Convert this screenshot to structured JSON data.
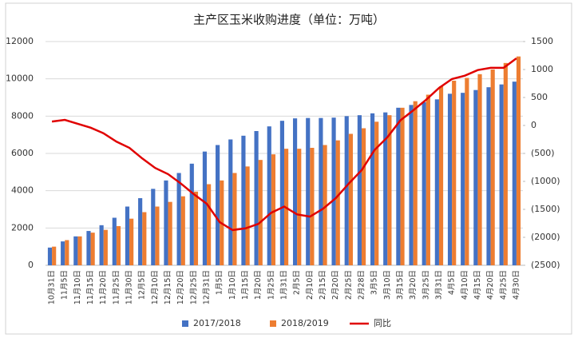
{
  "chart_data": {
    "type": "bar-line",
    "title": "主产区玉米收购进度（单位：万吨）",
    "categories": [
      "10月31日",
      "11月5日",
      "11月10日",
      "11月15日",
      "11月20日",
      "11月25日",
      "11月30日",
      "12月5日",
      "12月10日",
      "12月15日",
      "12月20日",
      "12月25日",
      "12月31日",
      "1月5日",
      "1月10日",
      "1月15日",
      "1月20日",
      "1月25日",
      "1月31日",
      "2月5日",
      "2月10日",
      "2月15日",
      "2月20日",
      "2月25日",
      "2月28日",
      "3月5日",
      "3月10日",
      "3月15日",
      "3月20日",
      "3月25日",
      "3月31日",
      "4月5日",
      "4月10日",
      "4月15日",
      "4月20日",
      "4月25日",
      "4月30日"
    ],
    "series": [
      {
        "name": "2017/2018",
        "type": "bar",
        "color": "#4472c4",
        "values": [
          950,
          1280,
          1550,
          1840,
          2150,
          2550,
          3150,
          3600,
          4100,
          4550,
          4950,
          5450,
          6100,
          6450,
          6750,
          6950,
          7200,
          7450,
          7750,
          7880,
          7900,
          7900,
          7920,
          8000,
          8050,
          8150,
          8200,
          8450,
          8600,
          8750,
          8900,
          9200,
          9250,
          9400,
          9550,
          9700,
          9850
        ]
      },
      {
        "name": "2018/2019",
        "type": "bar",
        "color": "#ed7d31",
        "values": [
          1000,
          1350,
          1550,
          1750,
          1900,
          2100,
          2500,
          2850,
          3150,
          3400,
          3700,
          3950,
          4350,
          4550,
          4950,
          5300,
          5650,
          5950,
          6250,
          6250,
          6300,
          6450,
          6700,
          7050,
          7350,
          7700,
          8050,
          8450,
          8800,
          9150,
          9600,
          9900,
          10050,
          10250,
          10500,
          10850,
          11200
        ]
      },
      {
        "name": "同比",
        "type": "line",
        "axis": "y2",
        "color": "#e00000",
        "values": [
          70,
          100,
          30,
          -40,
          -140,
          -290,
          -400,
          -590,
          -760,
          -870,
          -1040,
          -1230,
          -1400,
          -1730,
          -1870,
          -1840,
          -1760,
          -1560,
          -1450,
          -1590,
          -1630,
          -1490,
          -1300,
          -1040,
          -800,
          -440,
          -210,
          90,
          270,
          460,
          670,
          830,
          890,
          990,
          1030,
          1030,
          1200
        ]
      }
    ],
    "ylim": [
      0,
      12000
    ],
    "yticks": [
      0,
      2000,
      4000,
      6000,
      8000,
      10000,
      12000
    ],
    "y2lim": [
      -2500,
      1500
    ],
    "y2ticks": [
      1500,
      1000,
      500,
      0,
      {
        "value": -500,
        "label": "(500)"
      },
      {
        "value": -1000,
        "label": "(1000)"
      },
      {
        "value": -1500,
        "label": "(1500)"
      },
      {
        "value": -2000,
        "label": "(2000)"
      },
      {
        "value": -2500,
        "label": "(2500)"
      }
    ],
    "grid": true,
    "legend": "bottom"
  }
}
